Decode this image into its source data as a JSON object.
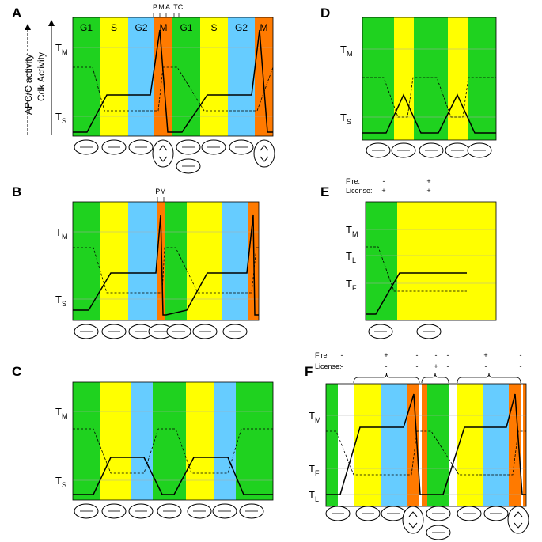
{
  "panels": [
    {
      "letter": "A",
      "axis_labels": [
        "APC/C activity",
        "Cdk Activity"
      ],
      "phase_labels": [
        "G1",
        "S",
        "G2",
        "M",
        "G1",
        "S",
        "G2",
        "M"
      ],
      "top_marks": [
        "P",
        "M",
        "A",
        "T",
        "C"
      ],
      "y_labels": [
        {
          "main": "T",
          "sub": "M"
        },
        {
          "main": "T",
          "sub": "S"
        }
      ]
    },
    {
      "letter": "B",
      "top_marks": [
        "PM"
      ],
      "y_labels": [
        {
          "main": "T",
          "sub": "M"
        },
        {
          "main": "T",
          "sub": "S"
        }
      ]
    },
    {
      "letter": "C",
      "y_labels": [
        {
          "main": "T",
          "sub": "M"
        },
        {
          "main": "T",
          "sub": "S"
        }
      ]
    },
    {
      "letter": "D",
      "y_labels": [
        {
          "main": "T",
          "sub": "M"
        },
        {
          "main": "T",
          "sub": "S"
        }
      ]
    },
    {
      "letter": "E",
      "rows": [
        {
          "label": "Fire:",
          "signs": [
            "-",
            "+"
          ]
        },
        {
          "label": "License:",
          "signs": [
            "+",
            "+"
          ]
        }
      ],
      "y_labels": [
        {
          "main": "T",
          "sub": "M"
        },
        {
          "main": "T",
          "sub": "L"
        },
        {
          "main": "T",
          "sub": "F"
        }
      ]
    },
    {
      "letter": "F",
      "rows": [
        {
          "label": "Fire",
          "signs": [
            "-",
            "+",
            "-",
            "-",
            "-",
            "+",
            "-"
          ]
        },
        {
          "label": "License:",
          "signs": [
            "-",
            "-",
            "-",
            "+",
            "-",
            "-",
            "-"
          ]
        }
      ],
      "y_labels": [
        {
          "main": "T",
          "sub": "M"
        },
        {
          "main": "T",
          "sub": "F"
        },
        {
          "main": "T",
          "sub": "L"
        }
      ]
    }
  ]
}
